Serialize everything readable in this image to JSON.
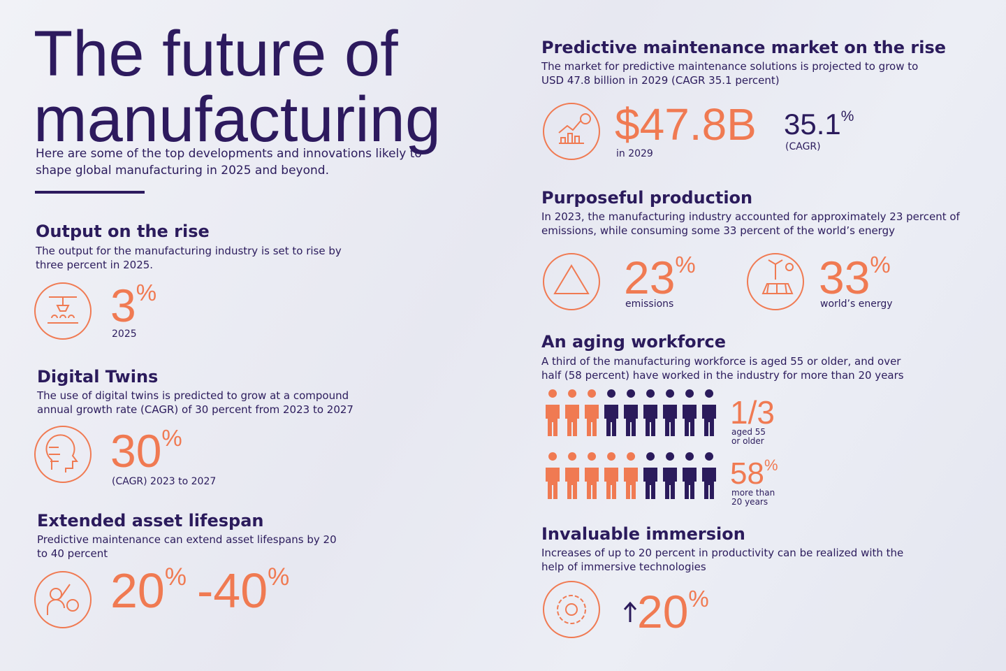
{
  "header": {
    "title": [
      "The future of",
      "manufacturing"
    ],
    "subtitle": [
      "Here are some of the top developments and innovations likely to",
      "shape global manufacturing in 2025 and beyond."
    ]
  },
  "sections": [
    {
      "heading": "Output on the rise",
      "description": [
        "The output for the manufacturing industry is set to rise by",
        "three percent in 2025."
      ],
      "stats": [
        {
          "value": "3",
          "unit": "%",
          "caption": [
            "2025"
          ]
        }
      ]
    },
    {
      "heading": "Digital Twins",
      "description": [
        "The use of digital twins is predicted to grow at a compound",
        "annual growth rate (CAGR) of 30 percent from 2023 to 2027"
      ],
      "stats": [
        {
          "value": "30",
          "unit": "%",
          "caption": [
            "(CAGR) 2023 to 2027"
          ]
        }
      ]
    },
    {
      "heading": "Extended asset lifespan",
      "description": [
        "Predictive maintenance can extend asset lifespans by 20",
        "to 40 percent"
      ],
      "stats": [
        {
          "value": "20",
          "unit": "%"
        },
        {
          "value": "-40",
          "unit": "%"
        }
      ]
    },
    {
      "heading": "Predictive maintenance market on the rise",
      "description": [
        "The market for predictive maintenance solutions is projected to grow to",
        "USD 47.8 billion in 2029 (CAGR 35.1 percent)"
      ],
      "stats": [
        {
          "value": "$47.8B",
          "caption": [
            "in 2029"
          ]
        },
        {
          "value": "35.1",
          "unit": "%",
          "caption": [
            "(CAGR)"
          ]
        }
      ]
    },
    {
      "heading": "Purposeful production",
      "description": [
        "In 2023, the manufacturing industry accounted for approximately 23 percent of",
        "emissions, while consuming some 33 percent of the world’s energy"
      ],
      "stats": [
        {
          "value": "23",
          "unit": "%",
          "caption": [
            "emissions"
          ]
        },
        {
          "value": "33",
          "unit": "%",
          "caption": [
            "world’s energy"
          ]
        }
      ]
    },
    {
      "heading": "An aging workforce",
      "description": [
        "A third of the manufacturing workforce is aged 55 or older, and over",
        "half (58 percent) have worked in the industry for more than 20 years"
      ],
      "stats": [
        {
          "value": "1/3",
          "caption": [
            "aged 55",
            "or older"
          ]
        },
        {
          "value": "58",
          "unit": "%",
          "caption": [
            "more than",
            "20 years"
          ]
        }
      ]
    },
    {
      "heading": "Invaluable immersion",
      "description": [
        "Increases of up to 20 percent in productivity can be realized with the",
        "help of immersive technologies"
      ],
      "stats": [
        {
          "value": "20",
          "unit": "%"
        }
      ]
    }
  ]
}
